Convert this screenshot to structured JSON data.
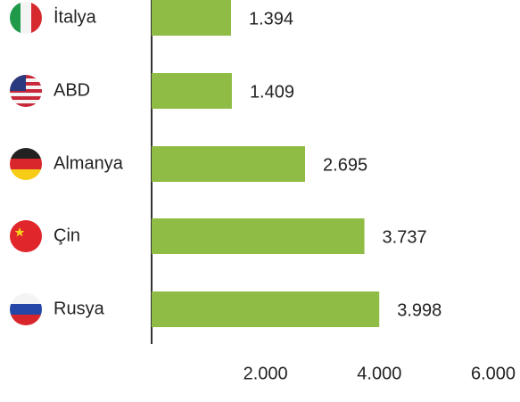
{
  "chart_data": {
    "type": "hbar",
    "categories": [
      "İtalya",
      "ABD",
      "Almanya",
      "Çin",
      "Rusya"
    ],
    "values": [
      1394,
      1409,
      2695,
      3737,
      3998
    ],
    "value_labels": [
      "1.394",
      "1.409",
      "2.695",
      "3.737",
      "3.998"
    ],
    "color": "#8fbc45",
    "xlim": [
      0,
      6000
    ],
    "xticks": [
      {
        "value": 2000,
        "label": "2.000"
      },
      {
        "value": 4000,
        "label": "4.000"
      },
      {
        "value": 6000,
        "label": "6.000"
      }
    ],
    "grid": false
  }
}
